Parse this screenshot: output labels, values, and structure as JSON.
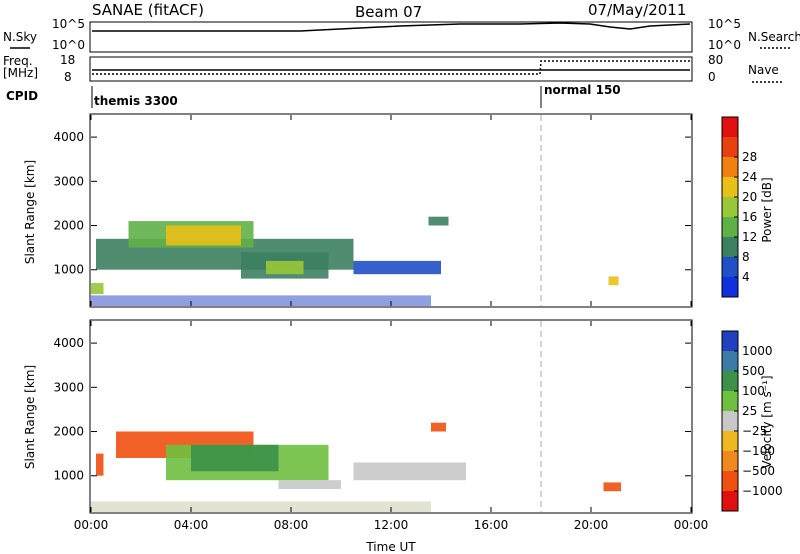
{
  "header": {
    "station": "SANAE (fitACF)",
    "beam": "Beam 07",
    "date": "07/May/2011"
  },
  "summary": {
    "nsky_label": "N.Sky",
    "nsky_ticks": [
      "10^5",
      "10^0"
    ],
    "nsearch_label": "N.Search",
    "nsearch_ticks": [
      "10^5",
      "10^0"
    ],
    "freq_label": "Freq.",
    "freq_unit": "[MHz]",
    "freq_ticks": [
      "18",
      "8"
    ],
    "nave_label": "Nave",
    "nave_ticks": [
      "80",
      "0"
    ],
    "cpid_label": "CPID",
    "cpid_segments": [
      {
        "name": "themis 3300",
        "start_hour": 0
      },
      {
        "name": "normal 150",
        "start_hour": 18
      }
    ]
  },
  "colorbars": {
    "power": {
      "label": "Power [dB]",
      "ticks": [
        "4",
        "8",
        "12",
        "16",
        "20",
        "24",
        "28"
      ],
      "colors": [
        "#1030e0",
        "#2050c8",
        "#3c8060",
        "#60b048",
        "#98c838",
        "#e8c018",
        "#f08010",
        "#e84010",
        "#e01010"
      ]
    },
    "velocity": {
      "label": "Velocity [m s⁻¹]",
      "ticks": [
        "1000",
        "500",
        "100",
        "25",
        "−25",
        "−100",
        "−500",
        "−1000"
      ],
      "colors": [
        "#2040c0",
        "#3c7aa8",
        "#3c9048",
        "#70c040",
        "#c8c8c8",
        "#f0b820",
        "#f08820",
        "#f05010",
        "#e01010"
      ]
    }
  },
  "chart_data": [
    {
      "type": "heatmap",
      "panel": "power",
      "ylabel": "Slant Range [km]",
      "xlabel": "",
      "x_ticks": [
        "00:00",
        "04:00",
        "08:00",
        "12:00",
        "16:00",
        "20:00",
        "00:00"
      ],
      "y_ticks": [
        1000,
        2000,
        3000,
        4000
      ],
      "xlim_hours": [
        0,
        24
      ],
      "ylim_km": [
        180,
        4500
      ],
      "regions": [
        {
          "t0": 0.2,
          "t1": 10.5,
          "r0": 1000,
          "r1": 1700,
          "level": 2
        },
        {
          "t0": 1.5,
          "t1": 6.5,
          "r0": 1500,
          "r1": 2100,
          "level": 3
        },
        {
          "t0": 3.0,
          "t1": 6.0,
          "r0": 1550,
          "r1": 2000,
          "level": 5
        },
        {
          "t0": 6.0,
          "t1": 9.5,
          "r0": 800,
          "r1": 1400,
          "level": 2
        },
        {
          "t0": 7.0,
          "t1": 8.5,
          "r0": 900,
          "r1": 1200,
          "level": 4
        },
        {
          "t0": 10.5,
          "t1": 14.0,
          "r0": 900,
          "r1": 1200,
          "level": 1
        },
        {
          "t0": 13.5,
          "t1": 14.3,
          "r0": 2000,
          "r1": 2200,
          "level": 2
        },
        {
          "t0": 0.0,
          "t1": 0.5,
          "r0": 450,
          "r1": 700,
          "level": 4
        },
        {
          "t0": 20.7,
          "t1": 21.1,
          "r0": 650,
          "r1": 850,
          "level": 5
        }
      ]
    },
    {
      "type": "heatmap",
      "panel": "velocity",
      "ylabel": "Slant Range [km]",
      "xlabel": "Time UT",
      "x_ticks": [
        "00:00",
        "04:00",
        "08:00",
        "12:00",
        "16:00",
        "20:00",
        "00:00"
      ],
      "y_ticks": [
        1000,
        2000,
        3000,
        4000
      ],
      "xlim_hours": [
        0,
        24
      ],
      "ylim_km": [
        180,
        4500
      ],
      "regions": [
        {
          "t0": 1.0,
          "t1": 6.5,
          "r0": 1400,
          "r1": 2000,
          "level": 7
        },
        {
          "t0": 3.0,
          "t1": 9.5,
          "r0": 900,
          "r1": 1700,
          "level": 3
        },
        {
          "t0": 4.0,
          "t1": 7.5,
          "r0": 1100,
          "r1": 1700,
          "level": 2
        },
        {
          "t0": 7.5,
          "t1": 10.0,
          "r0": 700,
          "r1": 900,
          "level": 4
        },
        {
          "t0": 10.5,
          "t1": 15.0,
          "r0": 900,
          "r1": 1300,
          "level": 4
        },
        {
          "t0": 13.6,
          "t1": 14.2,
          "r0": 2000,
          "r1": 2200,
          "level": 7
        },
        {
          "t0": 0.2,
          "t1": 0.5,
          "r0": 1000,
          "r1": 1500,
          "level": 7
        },
        {
          "t0": 20.5,
          "t1": 21.2,
          "r0": 650,
          "r1": 850,
          "level": 7
        }
      ]
    }
  ]
}
